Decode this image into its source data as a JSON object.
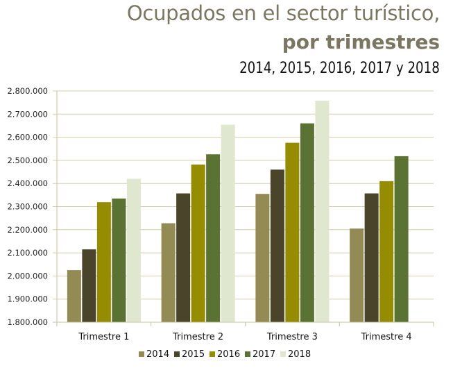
{
  "chart_data": {
    "type": "bar",
    "title": "Ocupados en el sector turístico,",
    "subtitle_bold": "por trimestres",
    "subtitle": "2014, 2015, 2016, 2017 y 2018",
    "xlabel": "",
    "ylabel": "",
    "categories": [
      "Trimestre 1",
      "Trimestre 2",
      "Trimestre 3",
      "Trimestre 4"
    ],
    "ylim": [
      1800000,
      2800000
    ],
    "yticks": [
      1800000,
      1900000,
      2000000,
      2100000,
      2200000,
      2300000,
      2400000,
      2500000,
      2600000,
      2700000,
      2800000
    ],
    "ytick_labels": [
      "1.800.000",
      "1.900.000",
      "2.000.000",
      "2.100.000",
      "2.200.000",
      "2.300.000",
      "2.400.000",
      "2.500.000",
      "2.600.000",
      "2.700.000",
      "2.800.000"
    ],
    "grid": true,
    "legend_position": "bottom",
    "series": [
      {
        "name": "2014",
        "color": "#948a54",
        "values": [
          2025000,
          2228000,
          2355000,
          2205000
        ]
      },
      {
        "name": "2015",
        "color": "#4a452a",
        "values": [
          2115000,
          2357000,
          2460000,
          2357000
        ]
      },
      {
        "name": "2016",
        "color": "#968c00",
        "values": [
          2319000,
          2482000,
          2576000,
          2410000
        ]
      },
      {
        "name": "2017",
        "color": "#5a7332",
        "values": [
          2335000,
          2526000,
          2660000,
          2518000
        ]
      },
      {
        "name": "2018",
        "color": "#dfe8cf",
        "values": [
          2420000,
          2654000,
          2758000,
          null
        ]
      }
    ]
  },
  "colors": {
    "title": "#7b7660",
    "gridline": "#d4ccb0",
    "axis": "#c8c0a0"
  }
}
